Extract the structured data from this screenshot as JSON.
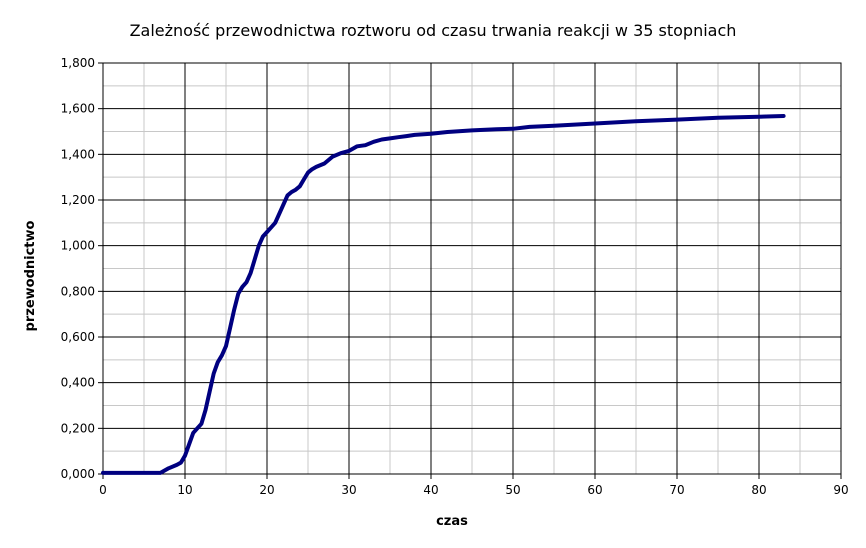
{
  "chart_data": {
    "type": "line",
    "title": "Zależność przewodnictwa roztworu od czasu trwania reakcji w 35 stopniach",
    "xlabel": "czas",
    "ylabel": "przewodnictwo",
    "xlim": [
      0,
      90
    ],
    "ylim": [
      0,
      1.8
    ],
    "x_major_step": 10,
    "x_minor_step": 5,
    "y_major_step": 0.2,
    "y_minor_step": 0.1,
    "x_ticks": [
      "0",
      "10",
      "20",
      "30",
      "40",
      "50",
      "60",
      "70",
      "80",
      "90"
    ],
    "y_ticks": [
      "0,000",
      "0,200",
      "0,400",
      "0,600",
      "0,800",
      "1,000",
      "1,200",
      "1,400",
      "1,600",
      "1,800"
    ],
    "grid": true,
    "line_color": "#000080",
    "series": [
      {
        "x": [
          0,
          2,
          4,
          6,
          7,
          8,
          9,
          9.5,
          10,
          10.5,
          11,
          11.5,
          12,
          12.5,
          13,
          13.5,
          14,
          14.5,
          15,
          15.5,
          16,
          16.5,
          17,
          17.5,
          18,
          18.5,
          19,
          19.5,
          20,
          20.5,
          21,
          21.5,
          22,
          22.5,
          23,
          23.5,
          24,
          24.5,
          25,
          25.5,
          26,
          27,
          28,
          29,
          30,
          31,
          32,
          33,
          34,
          35,
          36,
          37,
          38,
          40,
          42,
          45,
          48,
          50,
          52,
          55,
          60,
          65,
          70,
          75,
          80,
          83
        ],
        "y": [
          0.005,
          0.005,
          0.005,
          0.005,
          0.005,
          0.025,
          0.04,
          0.05,
          0.08,
          0.13,
          0.18,
          0.2,
          0.22,
          0.28,
          0.36,
          0.44,
          0.49,
          0.52,
          0.56,
          0.64,
          0.72,
          0.79,
          0.82,
          0.84,
          0.88,
          0.94,
          1.0,
          1.04,
          1.06,
          1.08,
          1.1,
          1.14,
          1.18,
          1.22,
          1.235,
          1.245,
          1.26,
          1.29,
          1.32,
          1.335,
          1.345,
          1.36,
          1.39,
          1.405,
          1.415,
          1.435,
          1.44,
          1.455,
          1.465,
          1.47,
          1.475,
          1.48,
          1.485,
          1.49,
          1.498,
          1.505,
          1.51,
          1.512,
          1.52,
          1.525,
          1.535,
          1.545,
          1.552,
          1.56,
          1.565,
          1.568
        ]
      }
    ]
  }
}
